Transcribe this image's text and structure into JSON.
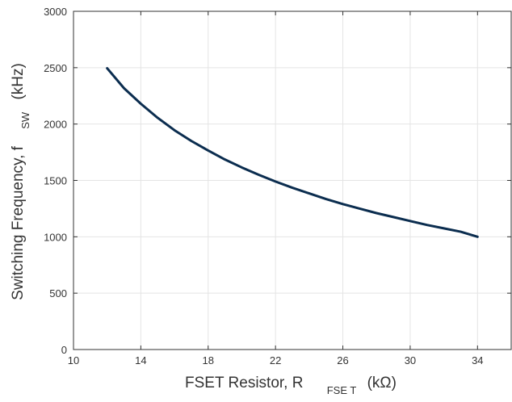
{
  "chart_data": {
    "type": "line",
    "xlabel": {
      "main": "FSET Resistor, R",
      "subscript": "FSE T",
      "unit": "(kΩ)"
    },
    "ylabel": {
      "main": "Switching Frequency, f",
      "subscript": "SW",
      "unit": "(kHz)"
    },
    "xlim": [
      10,
      36
    ],
    "ylim": [
      0,
      3000
    ],
    "x_ticks": [
      10,
      14,
      18,
      22,
      26,
      30,
      34
    ],
    "y_ticks": [
      0,
      500,
      1000,
      1500,
      2000,
      2500,
      3000
    ],
    "grid": true,
    "line_color": "#0b2d4f",
    "grid_color": "#e4e4e4",
    "series": [
      {
        "x": [
          12,
          13,
          14,
          15,
          16,
          17,
          18,
          19,
          20,
          21,
          22,
          23,
          24,
          25,
          26,
          27,
          28,
          29,
          30,
          31,
          32,
          33,
          34
        ],
        "values": [
          2495,
          2318,
          2180,
          2055,
          1945,
          1850,
          1765,
          1685,
          1615,
          1550,
          1490,
          1435,
          1385,
          1335,
          1290,
          1250,
          1210,
          1175,
          1140,
          1105,
          1075,
          1045,
          1000
        ]
      }
    ]
  }
}
